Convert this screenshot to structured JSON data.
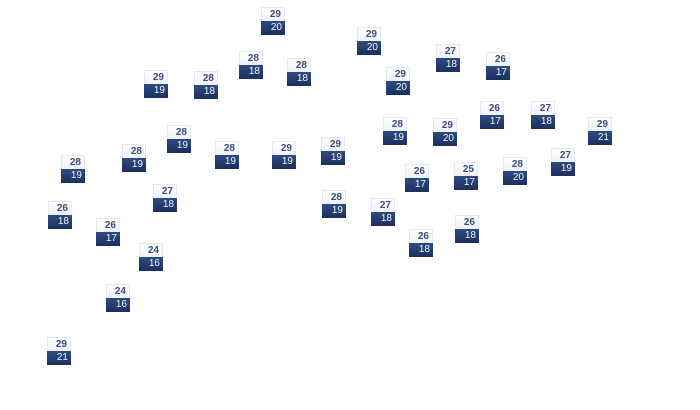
{
  "temperature_colors": {
    "high_bg": "#f4f7fc",
    "high_text": "#3a4f7a",
    "low_bg": "#233a6b",
    "low_text": "#f2f5fb"
  },
  "stations": [
    {
      "high": "29",
      "low": "20"
    },
    {
      "high": "29",
      "low": "20"
    },
    {
      "high": "27",
      "low": "18"
    },
    {
      "high": "26",
      "low": "17"
    },
    {
      "high": "29",
      "low": "19"
    },
    {
      "high": "28",
      "low": "18"
    },
    {
      "high": "28",
      "low": "18"
    },
    {
      "high": "28",
      "low": "18"
    },
    {
      "high": "29",
      "low": "20"
    },
    {
      "high": "26",
      "low": "17"
    },
    {
      "high": "27",
      "low": "18"
    },
    {
      "high": "29",
      "low": "21"
    },
    {
      "high": "28",
      "low": "19"
    },
    {
      "high": "29",
      "low": "20"
    },
    {
      "high": "28",
      "low": "19"
    },
    {
      "high": "28",
      "low": "19"
    },
    {
      "high": "29",
      "low": "19"
    },
    {
      "high": "29",
      "low": "19"
    },
    {
      "high": "28",
      "low": "19"
    },
    {
      "high": "28",
      "low": "19"
    },
    {
      "high": "27",
      "low": "18"
    },
    {
      "high": "26",
      "low": "17"
    },
    {
      "high": "25",
      "low": "17"
    },
    {
      "high": "28",
      "low": "20"
    },
    {
      "high": "27",
      "low": "19"
    },
    {
      "high": "28",
      "low": "19"
    },
    {
      "high": "27",
      "low": "18"
    },
    {
      "high": "26",
      "low": "18"
    },
    {
      "high": "26",
      "low": "18"
    },
    {
      "high": "26",
      "low": "18"
    },
    {
      "high": "26",
      "low": "17"
    },
    {
      "high": "24",
      "low": "16"
    },
    {
      "high": "24",
      "low": "16"
    },
    {
      "high": "29",
      "low": "21"
    }
  ]
}
